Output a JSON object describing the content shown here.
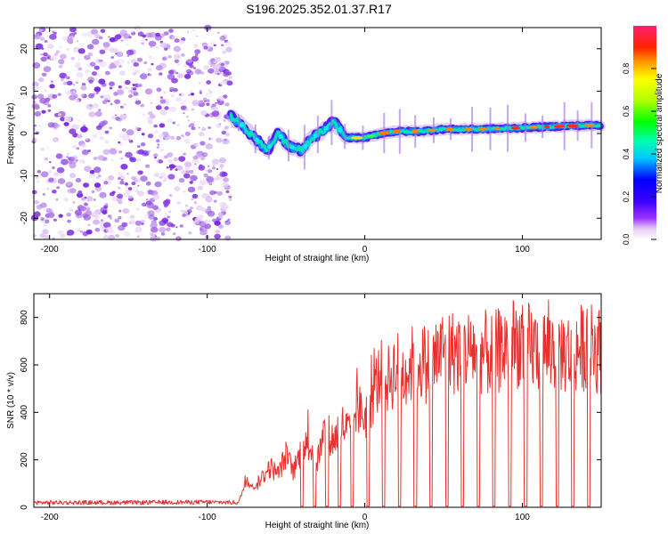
{
  "title": "S196.2025.352.01.37.R17",
  "chart_data": [
    {
      "type": "heatmap",
      "xlabel": "Height of straight line (km)",
      "ylabel": "Frequency (Hz)",
      "xlim": [
        -210,
        150
      ],
      "ylim": [
        -25,
        25
      ],
      "xticks": [
        -200,
        -100,
        0,
        100
      ],
      "yticks": [
        -20,
        -10,
        0,
        10,
        20
      ],
      "noise_region_x": [
        -210,
        -85
      ],
      "ridge": {
        "x": [
          -85,
          -78,
          -70,
          -62,
          -55,
          -48,
          -40,
          -33,
          -25,
          -20,
          -12,
          -5,
          0,
          10,
          20,
          35,
          50,
          70,
          90,
          110,
          130,
          150
        ],
        "y": [
          4,
          2,
          -1,
          -4,
          0,
          -3,
          -4,
          -1,
          1,
          3,
          -1,
          -1,
          -1,
          0,
          0.5,
          0.5,
          1,
          1,
          1.2,
          1.5,
          1.8,
          2
        ]
      },
      "colorbar": {
        "label": "Normalized spectral amplitude",
        "range": [
          0,
          1
        ],
        "ticks": [
          0.0,
          0.2,
          0.4,
          0.6,
          0.8
        ]
      }
    },
    {
      "type": "line",
      "xlabel": "Height of straight line (km)",
      "ylabel": "SNR (10 * v/v)",
      "xlim": [
        -210,
        150
      ],
      "ylim": [
        0,
        900
      ],
      "xticks": [
        -200,
        -100,
        0,
        100
      ],
      "yticks": [
        0,
        200,
        400,
        600,
        800
      ],
      "series": [
        {
          "name": "SNR",
          "color": "#e8312f",
          "x": [
            -210,
            -150,
            -100,
            -80,
            -75,
            -70,
            -65,
            -60,
            -55,
            -50,
            -45,
            -40,
            -35,
            -30,
            -25,
            -20,
            -15,
            -10,
            -5,
            0,
            5,
            10,
            15,
            20,
            25,
            30,
            35,
            40,
            50,
            60,
            70,
            80,
            90,
            100,
            110,
            120,
            130,
            140,
            150
          ],
          "y": [
            20,
            20,
            22,
            20,
            120,
            80,
            130,
            170,
            140,
            220,
            150,
            250,
            260,
            200,
            330,
            280,
            350,
            320,
            420,
            380,
            470,
            560,
            540,
            590,
            560,
            600,
            620,
            600,
            660,
            650,
            670,
            640,
            680,
            700,
            660,
            670,
            650,
            680,
            660
          ]
        }
      ],
      "dropouts_x": [
        -40,
        -32,
        -24,
        -16,
        -8,
        2,
        12,
        22,
        32,
        42,
        52,
        62,
        72,
        82,
        92,
        102,
        112,
        122,
        132,
        142
      ]
    }
  ]
}
